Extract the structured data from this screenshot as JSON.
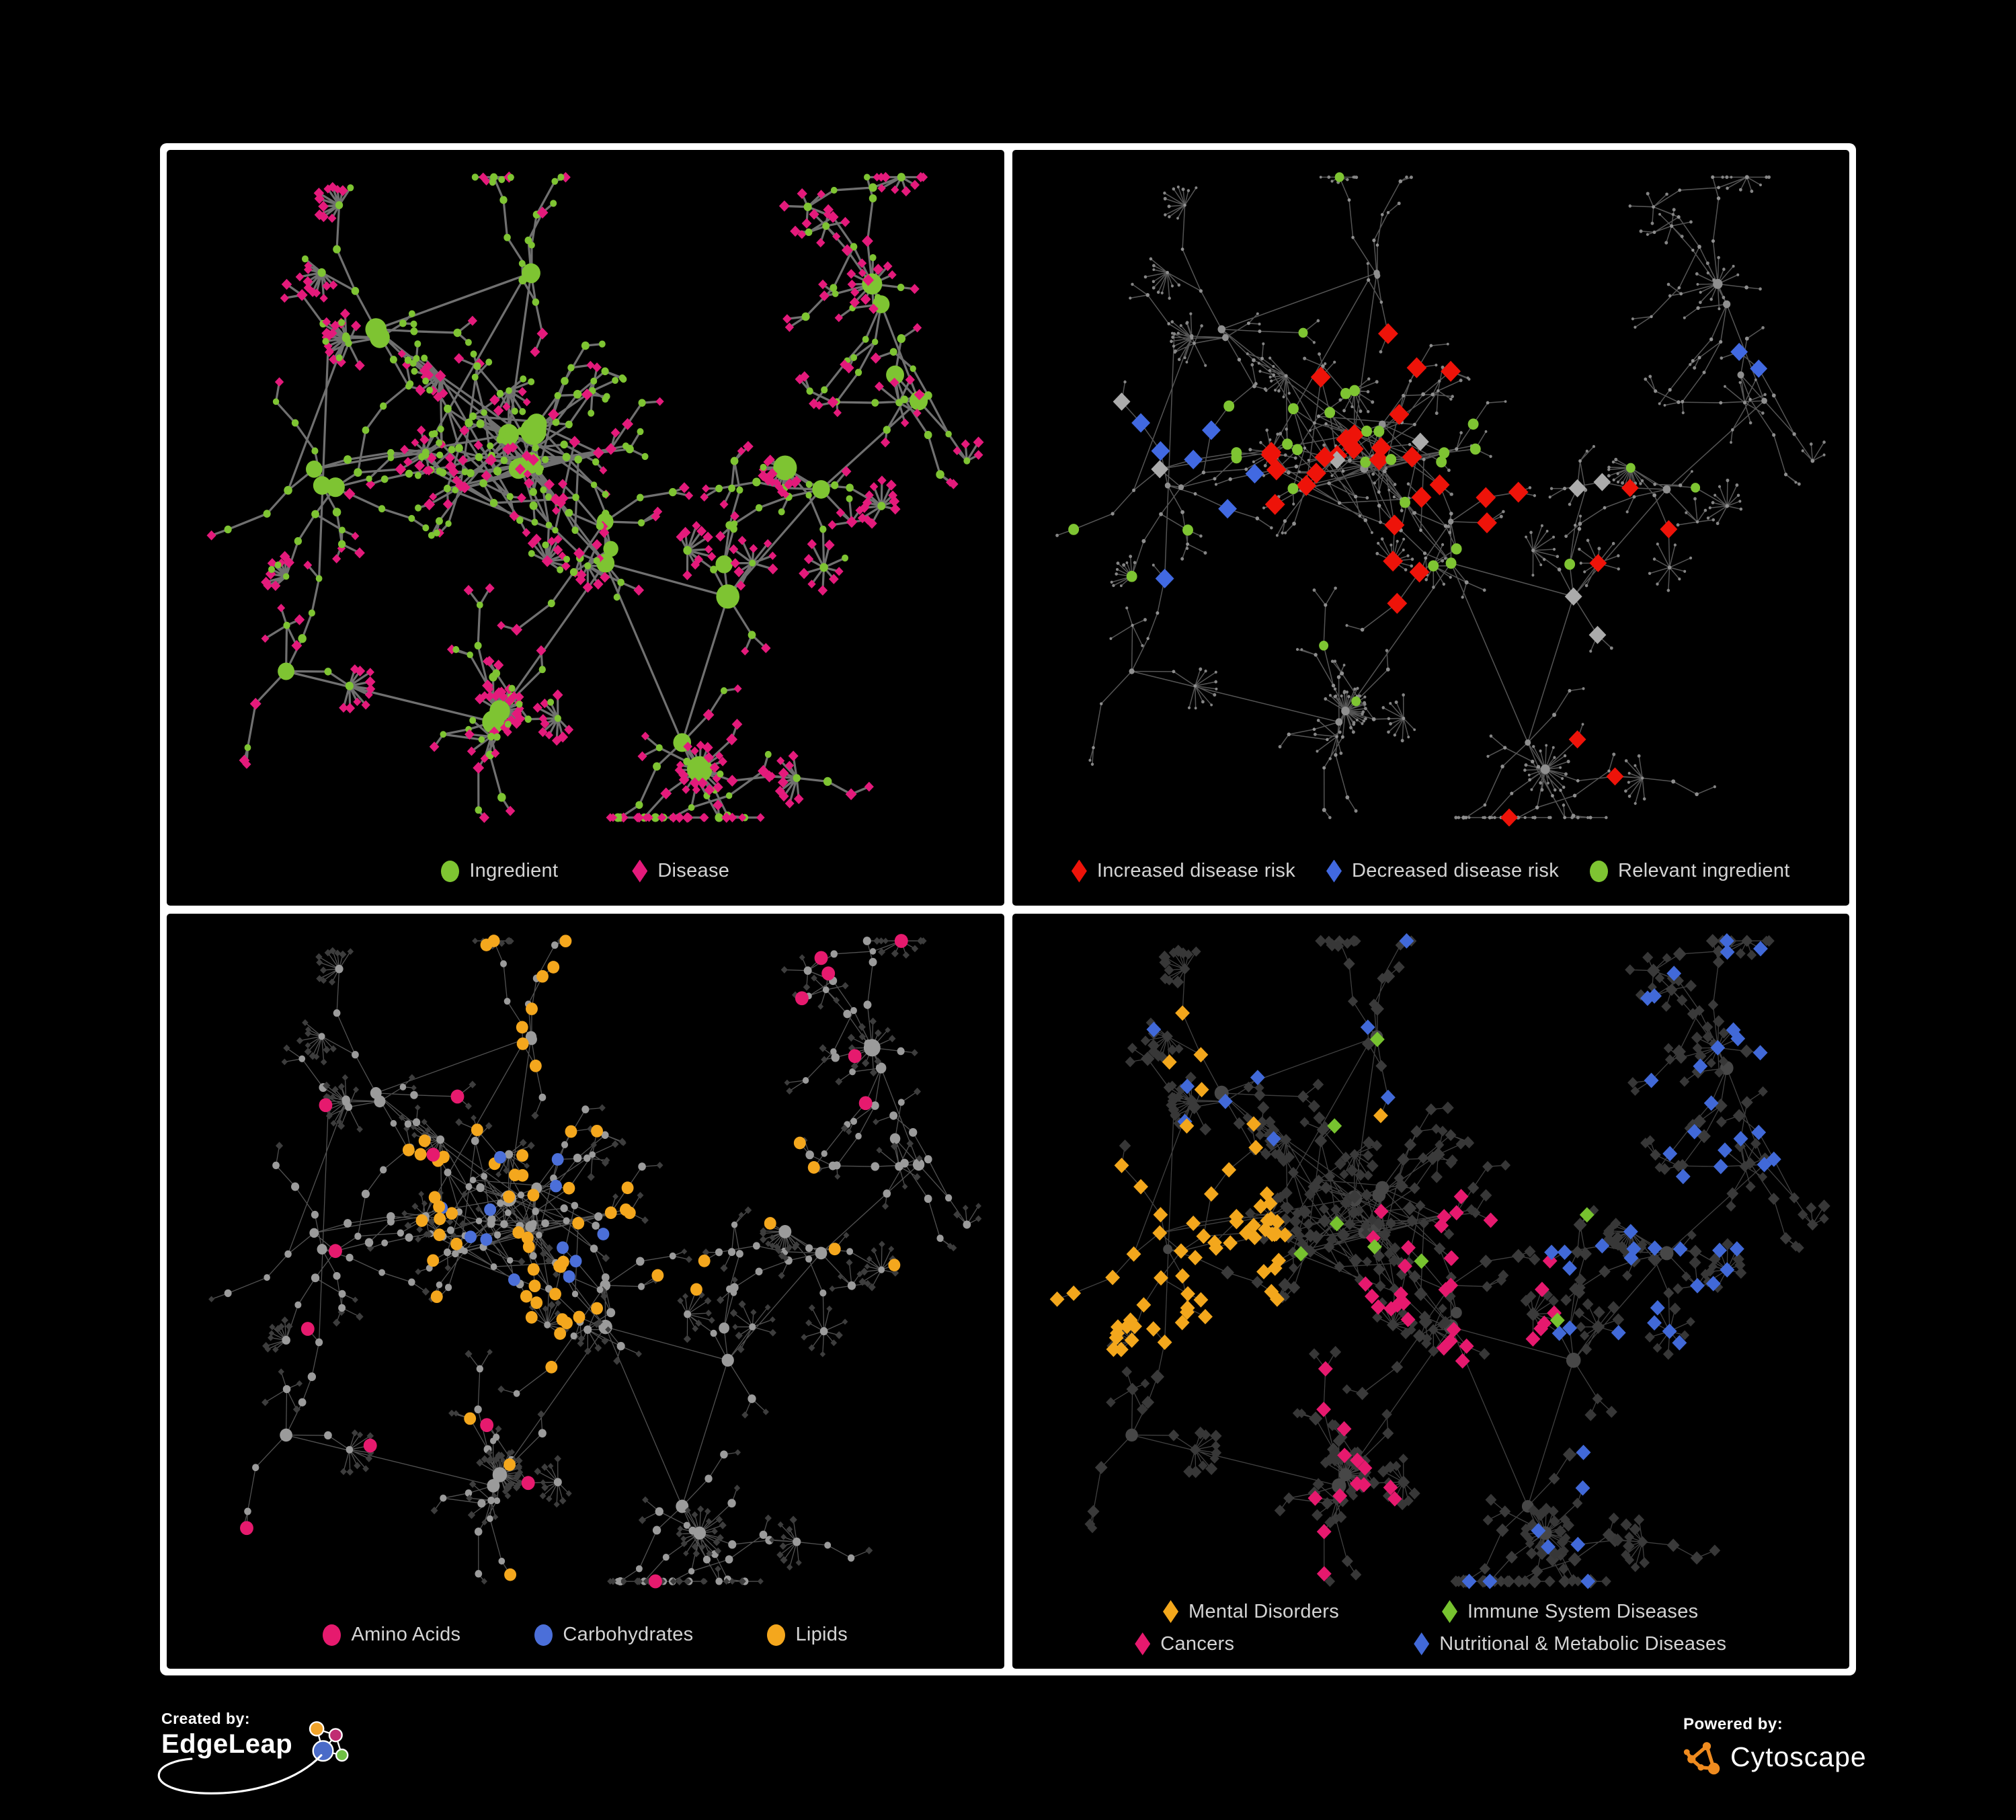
{
  "figure": {
    "background": "#000000",
    "frame_color": "#ffffff",
    "panel_background": "#000000",
    "legend_text_color": "#d4d4d4"
  },
  "panels": [
    {
      "name": "ingredient-disease",
      "legend": {
        "rows": [
          [
            {
              "shape": "circle",
              "color": "#7ec432",
              "label": "Ingredient"
            },
            {
              "shape": "diamond",
              "color": "#e41a7b",
              "label": "Disease"
            }
          ]
        ]
      },
      "network": {
        "edge": {
          "color": "#7c7c7c",
          "width": 3.2,
          "opacity": 0.9
        },
        "base": {
          "hub": {
            "shape": "circle",
            "color": "#7ec432",
            "size": 11
          },
          "mid": {
            "shape": "circle",
            "color": "#7ec432",
            "size": 5.5
          },
          "leaf": {
            "shape": "diamond",
            "color": "#e41a7b",
            "size": 7
          }
        },
        "highlights": [
          {
            "shape": "circle",
            "color": "#7ec432",
            "size": 5,
            "count": 45,
            "p": 0.5,
            "target": "leaf",
            "regions": [
              "B",
              "D"
            ],
            "range": 200
          },
          {
            "shape": "circle",
            "color": "#7ec432",
            "size": 5,
            "count": 35,
            "p": 0.25,
            "target": "leaf",
            "regions": [
              "ALL"
            ],
            "range": 0
          },
          {
            "shape": "diamond",
            "color": "#e41a7b",
            "size": 8.5,
            "count": 40,
            "p": 0.3,
            "target": "mid",
            "regions": [
              "ALL"
            ],
            "range": 0
          }
        ]
      }
    },
    {
      "name": "disease-risk",
      "legend": {
        "rows": [
          [
            {
              "shape": "diamond",
              "color": "#ee1309",
              "label": "Increased disease risk"
            },
            {
              "shape": "diamond",
              "color": "#4169e1",
              "label": "Decreased disease risk"
            },
            {
              "shape": "circle",
              "color": "#7ec432",
              "label": "Relevant ingredient"
            }
          ]
        ]
      },
      "network": {
        "edge": {
          "color": "#696969",
          "width": 1.5,
          "opacity": 0.8
        },
        "base": {
          "hub": {
            "shape": "circle",
            "color": "#8f8f8f",
            "size": 4
          },
          "mid": {
            "shape": "circle",
            "color": "#8f8f8f",
            "size": 2.6
          },
          "leaf": {
            "shape": "circle",
            "color": "#858585",
            "size": 2.2
          }
        },
        "highlights": [
          {
            "shape": "diamond",
            "color": "#ee1309",
            "size": 15,
            "count": 28,
            "p": 0.6,
            "target": "internal",
            "regions": [
              "B",
              "C"
            ],
            "range": 180
          },
          {
            "shape": "diamond",
            "color": "#ee1309",
            "size": 13,
            "count": 6,
            "p": 0.5,
            "target": "internal",
            "regions": [
              "H",
              "F",
              "I"
            ],
            "range": 130
          },
          {
            "shape": "diamond",
            "color": "#4169e1",
            "size": 14,
            "count": 7,
            "p": 0.6,
            "target": "internal",
            "regions": [
              "A"
            ],
            "range": 140
          },
          {
            "shape": "diamond",
            "color": "#4169e1",
            "size": 13,
            "count": 2,
            "p": 1,
            "target": "any",
            "regions": [
              "K"
            ],
            "range": 70
          },
          {
            "shape": "diamond",
            "color": "#ababab",
            "size": 13,
            "count": 8,
            "p": 0.4,
            "target": "internal",
            "regions": [
              "A",
              "B",
              "C",
              "I"
            ],
            "range": 180
          },
          {
            "shape": "circle",
            "color": "#7ec432",
            "size": 8,
            "count": 26,
            "p": 0.5,
            "target": "internal",
            "regions": [
              "B",
              "C",
              "A"
            ],
            "range": 190
          },
          {
            "shape": "circle",
            "color": "#7ec432",
            "size": 7,
            "count": 6,
            "p": 0.4,
            "target": "internal",
            "regions": [
              "D",
              "G",
              "F"
            ],
            "range": 150
          }
        ]
      }
    },
    {
      "name": "macronutrients",
      "legend": {
        "rows": [
          [
            {
              "shape": "circle",
              "color": "#e61a6e",
              "label": "Amino Acids"
            },
            {
              "shape": "circle",
              "color": "#4b6fd9",
              "label": "Carbohydrates"
            },
            {
              "shape": "circle",
              "color": "#f4a71d",
              "label": "Lipids"
            }
          ]
        ]
      },
      "network": {
        "edge": {
          "color": "#707070",
          "width": 1.3,
          "opacity": 0.72
        },
        "base": {
          "hub": {
            "shape": "circle",
            "color": "#9b9b9b",
            "size": 7
          },
          "mid": {
            "shape": "circle",
            "color": "#9b9b9b",
            "size": 5.5
          },
          "leaf": {
            "shape": "diamond",
            "color": "#3d3d3d",
            "size": 5
          }
        },
        "highlights": [
          {
            "shape": "circle",
            "color": "#f4a71d",
            "size": 9,
            "count": 55,
            "p": 0.55,
            "target": "any",
            "regions": [
              "B",
              "D"
            ],
            "range": 190
          },
          {
            "shape": "circle",
            "color": "#f4a71d",
            "size": 9,
            "count": 12,
            "p": 0.3,
            "target": "any",
            "regions": [
              "I",
              "F",
              "G",
              "C"
            ],
            "range": 150
          },
          {
            "shape": "circle",
            "color": "#4b6fd9",
            "size": 9,
            "count": 12,
            "p": 0.5,
            "target": "any",
            "regions": [
              "B"
            ],
            "range": 130
          },
          {
            "shape": "circle",
            "color": "#e61a6e",
            "size": 10,
            "count": 16,
            "p": 0.35,
            "target": "any",
            "regions": [
              "J",
              "L",
              "G",
              "H",
              "E",
              "A"
            ],
            "range": 170
          }
        ]
      }
    },
    {
      "name": "disease-categories",
      "legend": {
        "rows": [
          [
            {
              "shape": "diamond",
              "color": "#f3a71c",
              "label": "Mental Disorders"
            },
            {
              "shape": "diamond",
              "color": "#77c32f",
              "label": "Immune System Diseases"
            }
          ],
          [
            {
              "shape": "diamond",
              "color": "#e6196e",
              "label": "Cancers"
            },
            {
              "shape": "diamond",
              "color": "#4169d8",
              "label": "Nutritional & Metabolic Diseases"
            }
          ]
        ]
      },
      "network": {
        "edge": {
          "color": "#6a6a6a",
          "width": 1.3,
          "opacity": 0.6
        },
        "base": {
          "hub": {
            "shape": "circle",
            "color": "#474747",
            "size": 7
          },
          "mid": {
            "shape": "diamond",
            "color": "#3a3a3a",
            "size": 9
          },
          "leaf": {
            "shape": "diamond",
            "color": "#373737",
            "size": 8
          }
        },
        "highlights": [
          {
            "shape": "diamond",
            "color": "#f3a71c",
            "size": 11,
            "count": 78,
            "p": 0.85,
            "target": "any",
            "regions": [
              "A"
            ],
            "range": 180
          },
          {
            "shape": "diamond",
            "color": "#f3a71c",
            "size": 11,
            "count": 8,
            "p": 0.25,
            "target": "any",
            "regions": [
              "D",
              "J"
            ],
            "range": 140
          },
          {
            "shape": "diamond",
            "color": "#e6196e",
            "size": 11,
            "count": 46,
            "p": 0.5,
            "target": "any",
            "regions": [
              "C",
              "G"
            ],
            "range": 170
          },
          {
            "shape": "diamond",
            "color": "#4169d8",
            "size": 11,
            "count": 44,
            "p": 0.55,
            "target": "any",
            "regions": [
              "F",
              "K",
              "E",
              "I"
            ],
            "range": 190
          },
          {
            "shape": "diamond",
            "color": "#4169d8",
            "size": 11,
            "count": 16,
            "p": 0.3,
            "target": "any",
            "regions": [
              "D",
              "J",
              "H",
              "L"
            ],
            "range": 150
          },
          {
            "shape": "diamond",
            "color": "#77c32f",
            "size": 11,
            "count": 8,
            "p": 0.2,
            "target": "any",
            "regions": [
              "B",
              "D",
              "F",
              "G"
            ],
            "range": 220
          }
        ]
      }
    }
  ],
  "footer": {
    "created_by_label": "Created by:",
    "created_by_name": "EdgeLeap",
    "powered_by_label": "Powered by:",
    "powered_by_name": "Cytoscape",
    "edgeleap_colors": {
      "orange": "#f0a32a",
      "magenta": "#c02d72",
      "blue": "#4a6bc8",
      "green": "#6fbf44"
    },
    "cytoscape_color": "#ef8b1f"
  }
}
